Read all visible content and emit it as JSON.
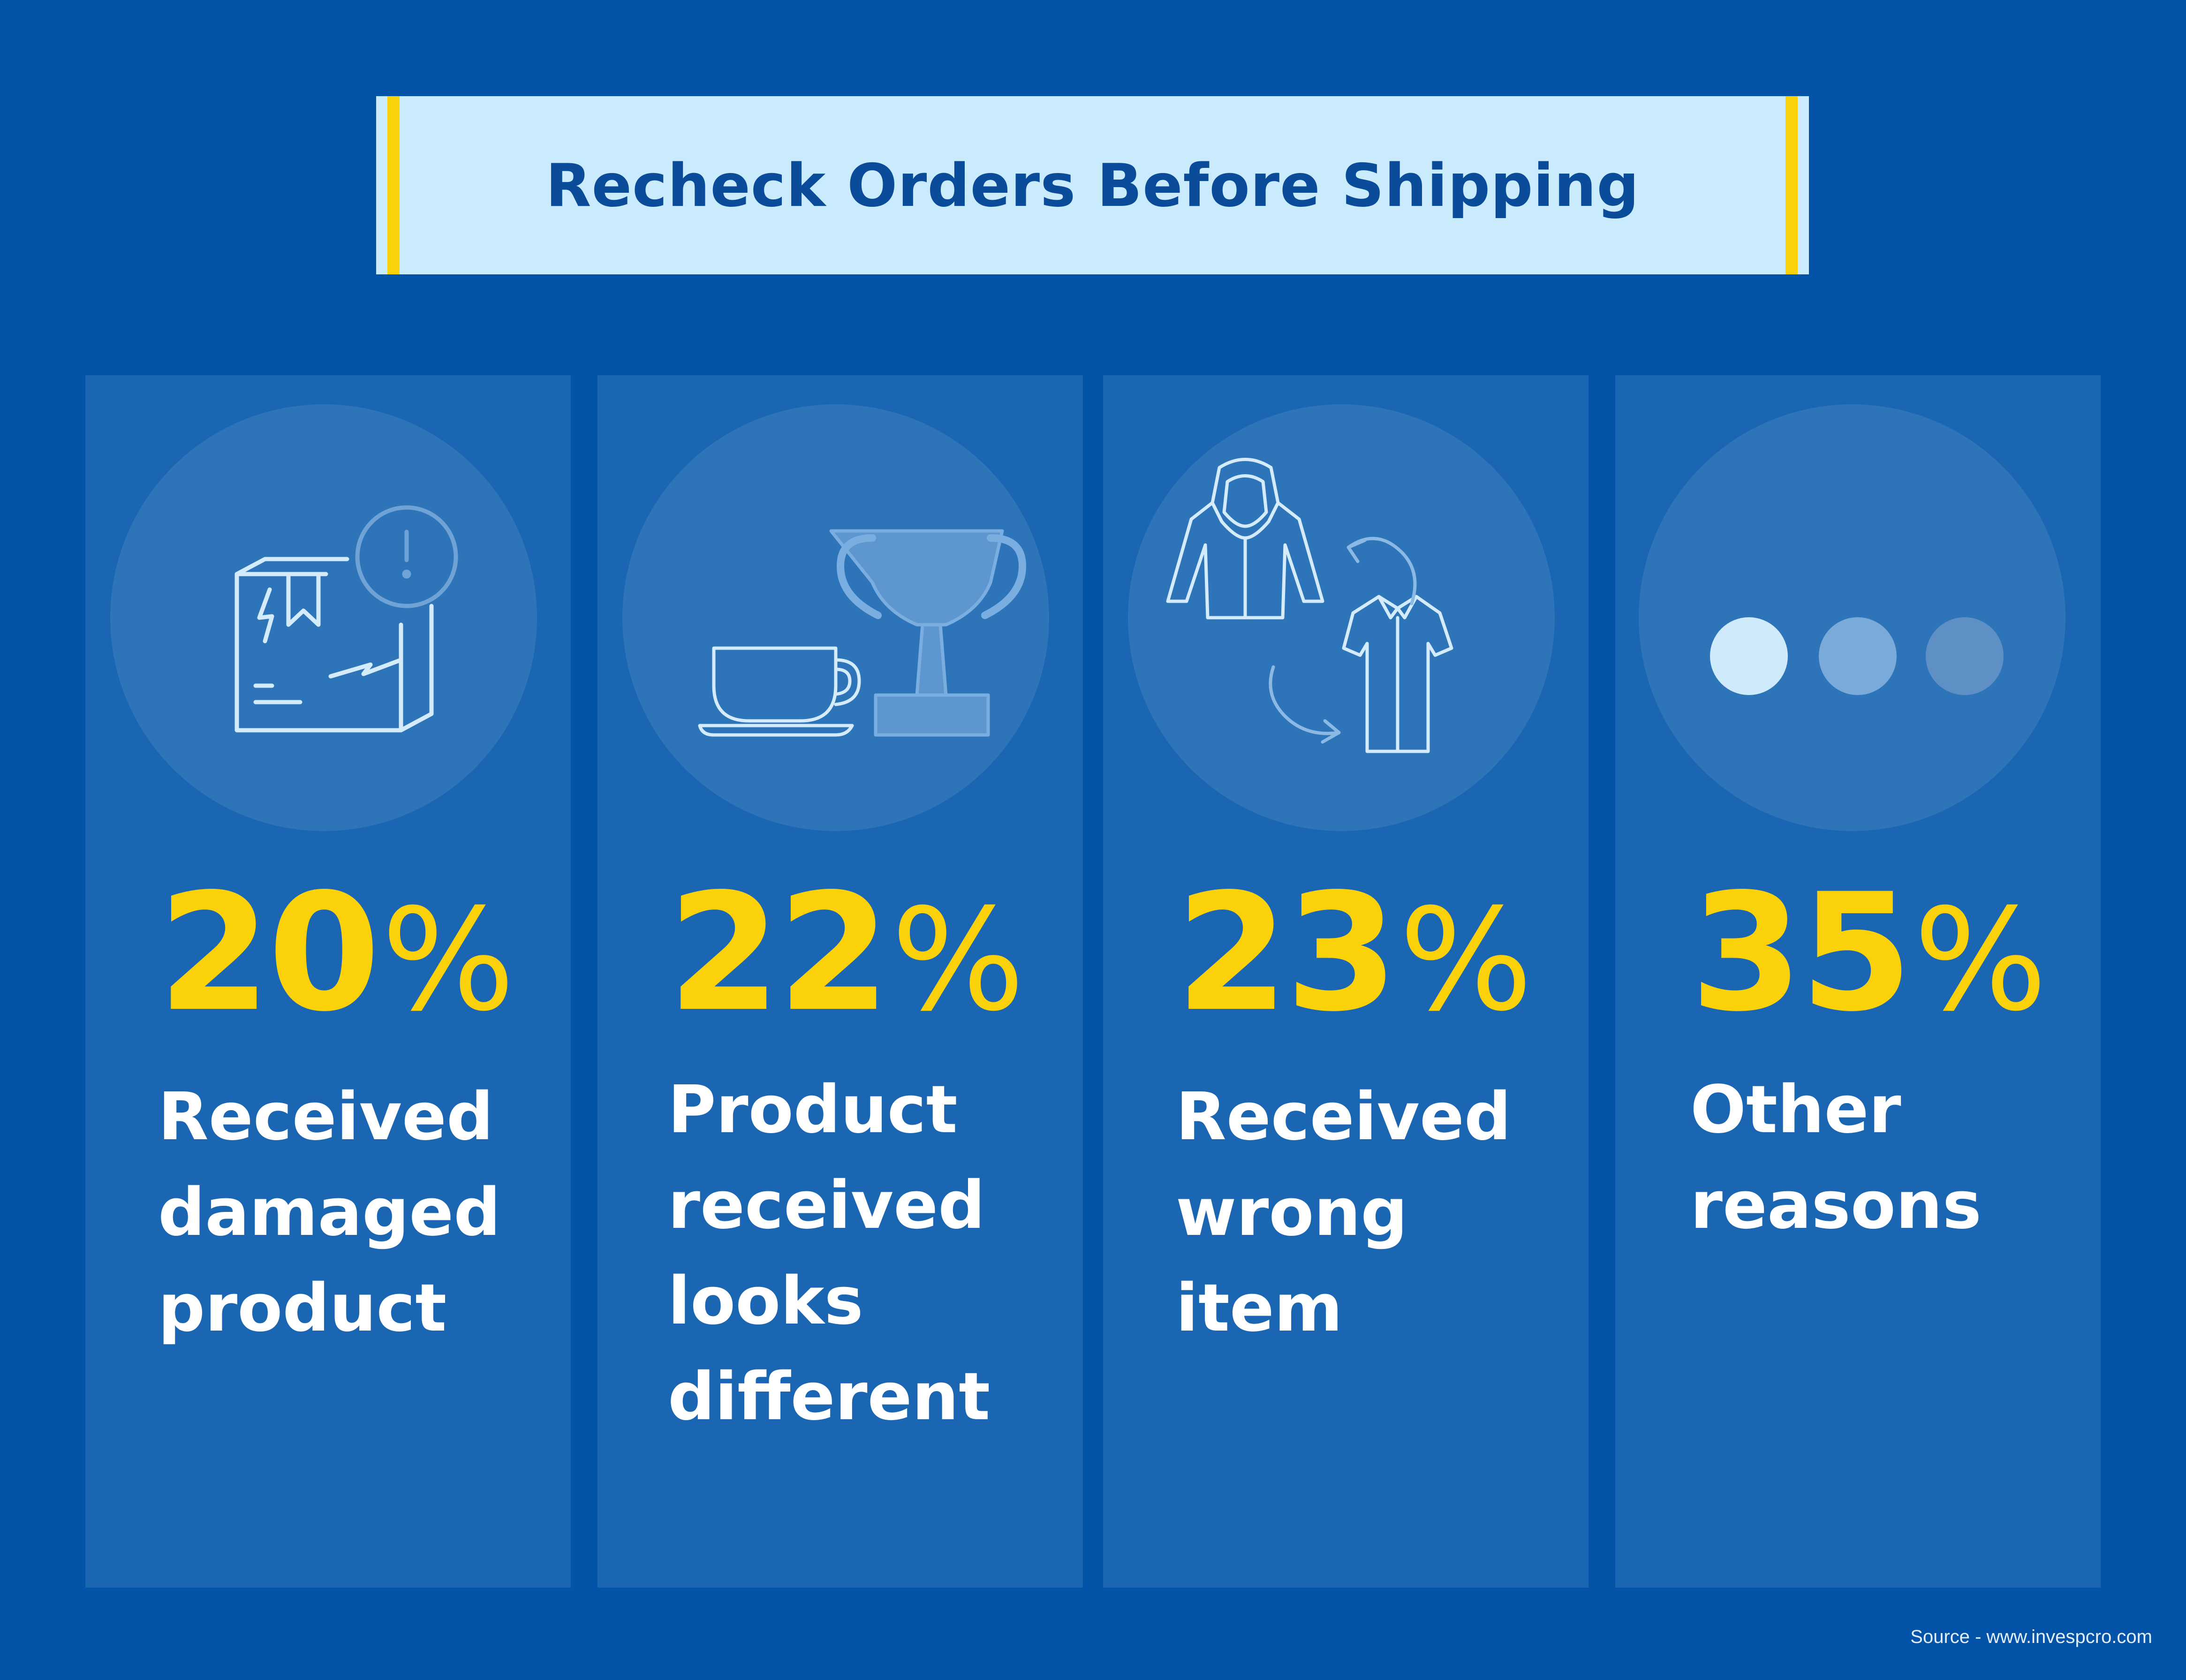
{
  "title": "Recheck Orders Before Shipping",
  "colors": {
    "background": "#0354a8",
    "card": "#1a66b2",
    "accent": "#fbd10a",
    "banner": "#c9ebfc",
    "title_text": "#0a4c9a"
  },
  "stats": [
    {
      "percent": "20",
      "percent_sign": "%",
      "label_lines": [
        "Received",
        "damaged",
        "product"
      ],
      "icon": "damaged-box-icon"
    },
    {
      "percent": "22",
      "percent_sign": "%",
      "label_lines": [
        "Product",
        "received",
        "looks",
        "different"
      ],
      "icon": "cup-and-trophy-icon"
    },
    {
      "percent": "23",
      "percent_sign": "%",
      "label_lines": [
        "Received",
        "wrong",
        "item"
      ],
      "icon": "clothing-swap-icon"
    },
    {
      "percent": "35",
      "percent_sign": "%",
      "label_lines": [
        "Other",
        "reasons"
      ],
      "icon": "ellipsis-dots-icon"
    }
  ],
  "source": "Source - www.invespcro.com"
}
